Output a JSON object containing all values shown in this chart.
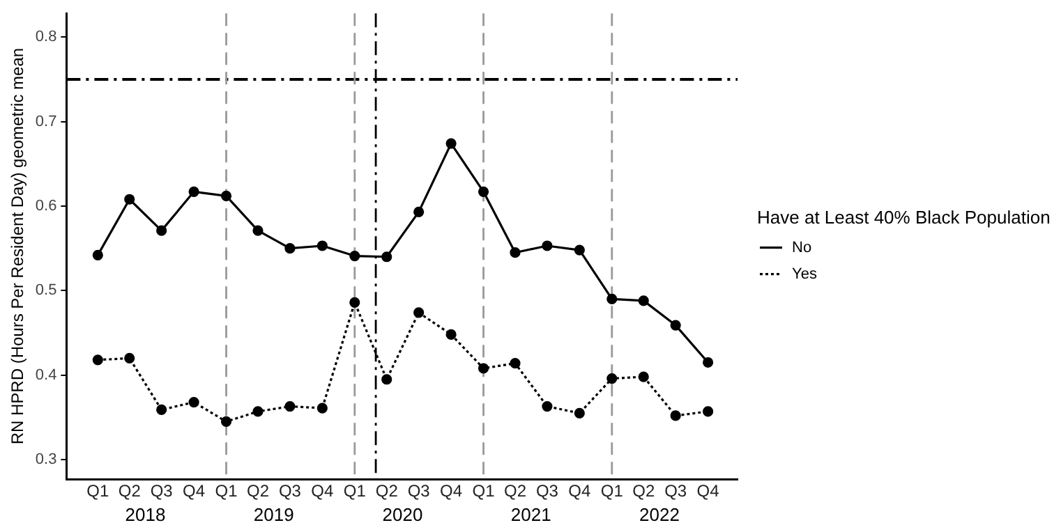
{
  "chart_data": {
    "type": "line",
    "ylabel": "RN HPRD (Hours Per Resident Day) geometric mean",
    "legend_title": "Have at Least 40% Black Population",
    "legend": "right",
    "grid": false,
    "marker": "circle",
    "x": [
      "2018-01",
      "2018-04",
      "2018-07",
      "2018-10",
      "2019-01",
      "2019-04",
      "2019-07",
      "2019-10",
      "2020-01",
      "2020-04",
      "2020-07",
      "2020-10",
      "2021-01",
      "2021-04",
      "2021-07",
      "2021-10",
      "2022-01",
      "2022-04",
      "2022-07",
      "2022-10"
    ],
    "series": [
      {
        "name": "No",
        "color": "#000000",
        "line_style": "solid",
        "values": [
          0.542,
          0.608,
          0.571,
          0.617,
          0.612,
          0.571,
          0.55,
          0.553,
          0.541,
          0.54,
          0.593,
          0.674,
          0.617,
          0.545,
          0.553,
          0.548,
          0.49,
          0.488,
          0.459,
          0.415
        ]
      },
      {
        "name": "Yes",
        "color": "#000000",
        "line_style": "dotted",
        "values": [
          0.418,
          0.42,
          0.359,
          0.368,
          0.345,
          0.357,
          0.363,
          0.361,
          0.486,
          0.395,
          0.474,
          0.448,
          0.408,
          0.414,
          0.363,
          0.355,
          0.396,
          0.398,
          0.352,
          0.357
        ]
      }
    ],
    "xlim": [
      "2017-10-04",
      "2022-12-24"
    ],
    "xticks": [
      {
        "value": "2018-01",
        "label": "Q1"
      },
      {
        "value": "2018-04",
        "label": "Q2"
      },
      {
        "value": "2018-07",
        "label": "Q3"
      },
      {
        "value": "2018-10",
        "label": "Q4"
      },
      {
        "value": "2019-01",
        "label": "Q1"
      },
      {
        "value": "2019-04",
        "label": "Q2"
      },
      {
        "value": "2019-07",
        "label": "Q3"
      },
      {
        "value": "2019-10",
        "label": "Q4"
      },
      {
        "value": "2020-01",
        "label": "Q1"
      },
      {
        "value": "2020-04",
        "label": "Q2"
      },
      {
        "value": "2020-07",
        "label": "Q3"
      },
      {
        "value": "2020-10",
        "label": "Q4"
      },
      {
        "value": "2021-01",
        "label": "Q1"
      },
      {
        "value": "2021-04",
        "label": "Q2"
      },
      {
        "value": "2021-07",
        "label": "Q3"
      },
      {
        "value": "2021-10",
        "label": "Q4"
      },
      {
        "value": "2022-01",
        "label": "Q1"
      },
      {
        "value": "2022-04",
        "label": "Q2"
      },
      {
        "value": "2022-07",
        "label": "Q3"
      },
      {
        "value": "2022-10",
        "label": "Q4"
      }
    ],
    "x2lim": [
      "2017-10-04",
      "2022-12-24"
    ],
    "x2ticks": [
      {
        "value": "2018-05-16",
        "label": "2018"
      },
      {
        "value": "2019-05-16",
        "label": "2019"
      },
      {
        "value": "2020-05-16",
        "label": "2020"
      },
      {
        "value": "2021-05-16",
        "label": "2021"
      },
      {
        "value": "2022-05-16",
        "label": "2022"
      }
    ],
    "ylim": [
      0.277,
      0.828
    ],
    "yticks": [
      0.3,
      0.4,
      0.5,
      0.6,
      0.7,
      0.8
    ],
    "ref_lines": [
      {
        "axis": "y",
        "value": 0.75,
        "color": "#000000",
        "line_style": "dashdot"
      },
      {
        "axis": "x",
        "value": "2019-01",
        "color": "#999999",
        "line_style": "dashed"
      },
      {
        "axis": "x",
        "value": "2020-01",
        "color": "#999999",
        "line_style": "dashed"
      },
      {
        "axis": "x",
        "value": "2020-03",
        "color": "#000000",
        "line_style": "dashdot"
      },
      {
        "axis": "x",
        "value": "2021-01",
        "color": "#999999",
        "line_style": "dashed"
      },
      {
        "axis": "x",
        "value": "2022-01",
        "color": "#999999",
        "line_style": "dashed"
      }
    ]
  }
}
